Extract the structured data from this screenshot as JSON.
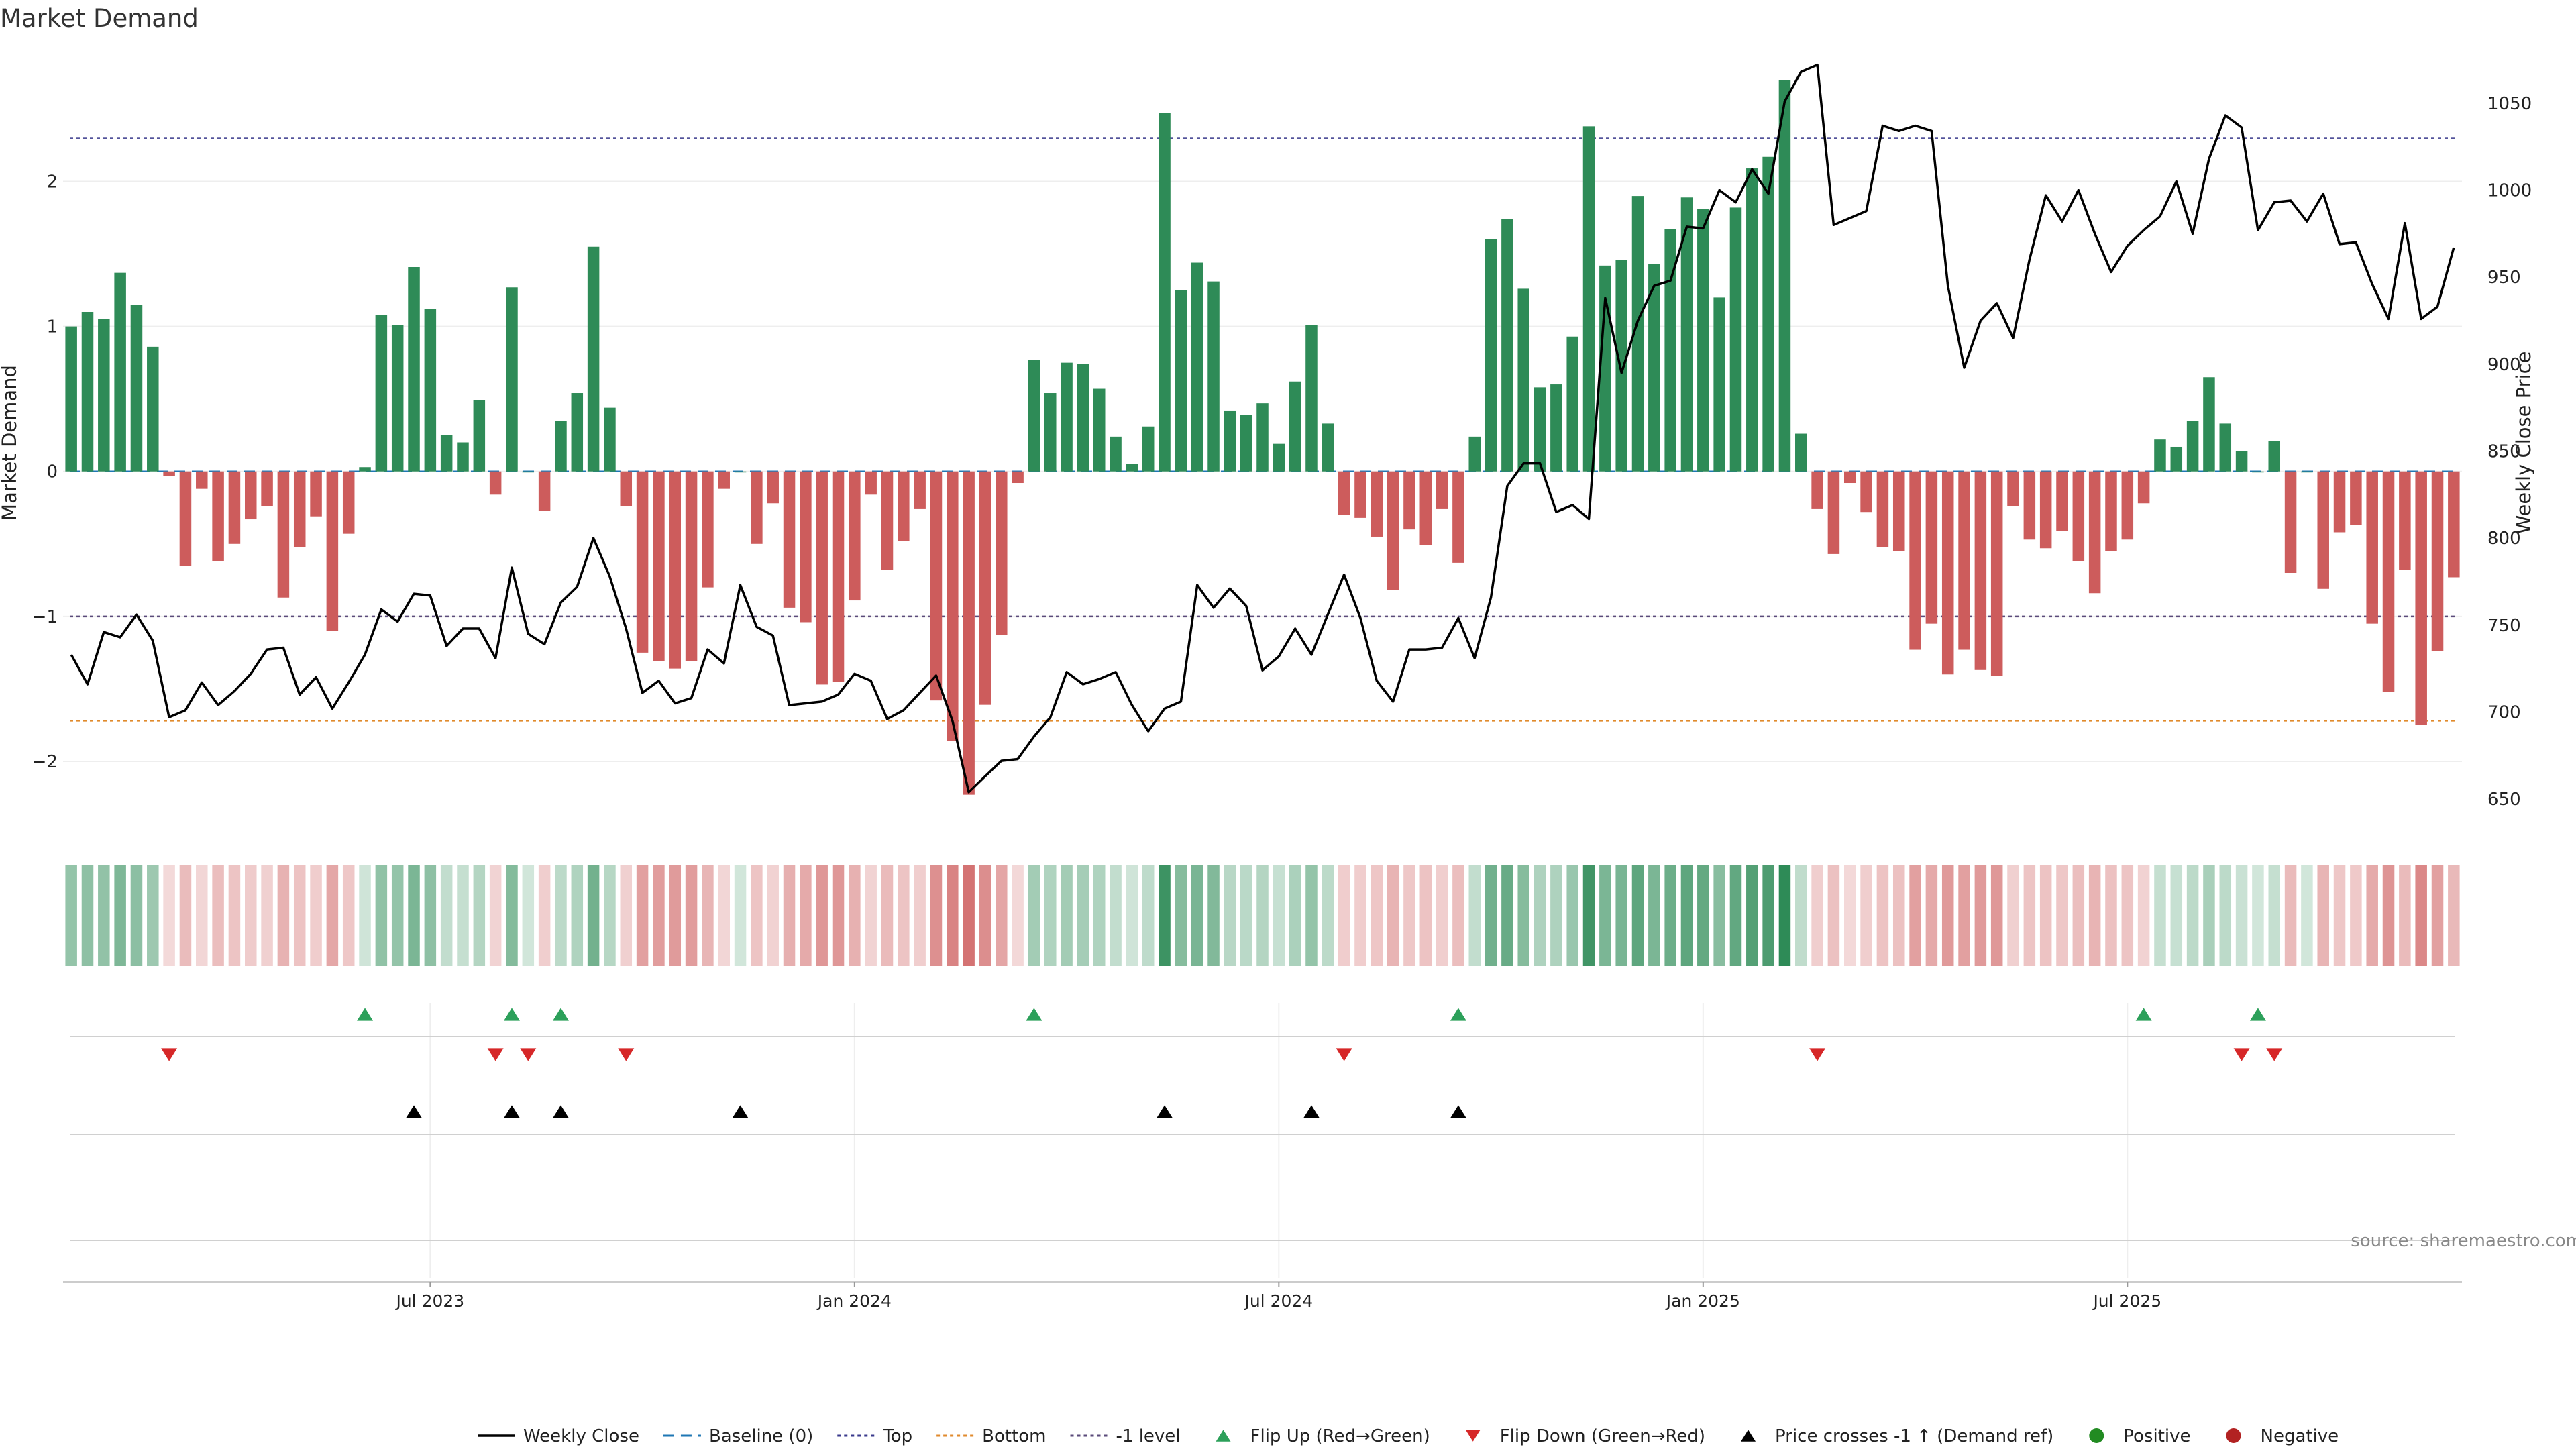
{
  "chart_data": {
    "type": "bar",
    "title": "Market Demand",
    "ylabel": "Market Demand",
    "y2label": "Weekly Close Price",
    "source": "source: sharemaestro.com",
    "ylim": [
      -2.5,
      2.9
    ],
    "y_ticks": [
      {
        "v": 2,
        "t": "2"
      },
      {
        "v": 1,
        "t": "1"
      },
      {
        "v": 0,
        "t": "0"
      },
      {
        "v": -1,
        "t": "−1"
      },
      {
        "v": -2,
        "t": "−2"
      }
    ],
    "y2lim": [
      630,
      1080
    ],
    "y2_ticks": [
      {
        "v": 1050,
        "t": "1050"
      },
      {
        "v": 1000,
        "t": "1000"
      },
      {
        "v": 950,
        "t": "950"
      },
      {
        "v": 900,
        "t": "900"
      },
      {
        "v": 850,
        "t": "850"
      },
      {
        "v": 800,
        "t": "800"
      },
      {
        "v": 750,
        "t": "750"
      },
      {
        "v": 700,
        "t": "700"
      },
      {
        "v": 650,
        "t": "650"
      }
    ],
    "x_ticks": [
      {
        "i": 22,
        "t": "Jul 2023"
      },
      {
        "i": 48,
        "t": "Jan 2024"
      },
      {
        "i": 74,
        "t": "Jul 2024"
      },
      {
        "i": 100,
        "t": "Jan 2025"
      },
      {
        "i": 126,
        "t": "Jul 2025"
      }
    ],
    "reference_lines": [
      {
        "name": "Baseline (0)",
        "value": 0,
        "color": "#1f77b4",
        "dash": "16,10"
      },
      {
        "name": "Top",
        "value": 2.3,
        "color": "#3a3a8c",
        "dash": "5,5"
      },
      {
        "name": "Bottom",
        "value": -1.72,
        "color": "#e08a2c",
        "dash": "5,5"
      },
      {
        "name": "-1 level",
        "value": -1,
        "color": "#5a4a7a",
        "dash": "5,5"
      }
    ],
    "colors": {
      "positive": "#2e8b57",
      "negative": "#cd5c5c",
      "price": "#000000",
      "flip_up": "#2ca05a",
      "flip_down": "#d62728",
      "cross": "#000000",
      "legend_positive": "#228b22",
      "legend_negative": "#b22222"
    },
    "demand": [
      1.0,
      1.1,
      1.05,
      1.37,
      1.15,
      0.86,
      -0.03,
      -0.65,
      -0.12,
      -0.62,
      -0.5,
      -0.33,
      -0.24,
      -0.87,
      -0.52,
      -0.31,
      -1.1,
      -0.43,
      0.03,
      1.08,
      1.01,
      1.41,
      1.12,
      0.25,
      0.2,
      0.49,
      -0.16,
      1.27,
      0.0,
      -0.27,
      0.35,
      0.54,
      1.55,
      0.44,
      -0.24,
      -1.25,
      -1.31,
      -1.36,
      -1.31,
      -0.8,
      -0.12,
      0.0,
      -0.5,
      -0.22,
      -0.94,
      -1.04,
      -1.47,
      -1.45,
      -0.89,
      -0.16,
      -0.68,
      -0.48,
      -0.26,
      -1.58,
      -1.86,
      -2.23,
      -1.61,
      -1.13,
      -0.08,
      0.77,
      0.54,
      0.75,
      0.74,
      0.57,
      0.24,
      0.05,
      0.31,
      2.47,
      1.25,
      1.44,
      1.31,
      0.42,
      0.39,
      0.47,
      0.19,
      0.62,
      1.01,
      0.33,
      -0.3,
      -0.32,
      -0.45,
      -0.82,
      -0.4,
      -0.51,
      -0.26,
      -0.63,
      0.24,
      1.6,
      1.74,
      1.26,
      0.58,
      0.6,
      0.93,
      2.38,
      1.42,
      1.46,
      1.9,
      1.43,
      1.67,
      1.89,
      1.81,
      1.2,
      1.82,
      2.09,
      2.17,
      2.7,
      0.26,
      -0.26,
      -0.57,
      -0.08,
      -0.28,
      -0.52,
      -0.55,
      -1.23,
      -1.05,
      -1.4,
      -1.23,
      -1.37,
      -1.41,
      -0.24,
      -0.47,
      -0.53,
      -0.41,
      -0.62,
      -0.84,
      -0.55,
      -0.47,
      -0.22,
      0.22,
      0.17,
      0.35,
      0.65,
      0.33,
      0.14,
      0.0,
      0.21,
      -0.7,
      0.0,
      -0.81,
      -0.42,
      -0.37,
      -1.05,
      -1.52,
      -0.68,
      -1.75,
      -1.24,
      -0.73
    ],
    "price": [
      733,
      716,
      746,
      743,
      756,
      741,
      697,
      701,
      717,
      704,
      712,
      722,
      736,
      737,
      710,
      720,
      702,
      717,
      733,
      759,
      752,
      768,
      767,
      738,
      748,
      748,
      731,
      783,
      745,
      739,
      763,
      772,
      800,
      778,
      748,
      711,
      718,
      705,
      708,
      736,
      728,
      773,
      749,
      744,
      704,
      705,
      706,
      710,
      722,
      718,
      696,
      701,
      711,
      721,
      695,
      654,
      663,
      672,
      673,
      686,
      697,
      723,
      716,
      719,
      723,
      704,
      689,
      702,
      706,
      773,
      760,
      771,
      761,
      724,
      732,
      748,
      733,
      756,
      779,
      754,
      718,
      706,
      736,
      736,
      737,
      754,
      731,
      766,
      830,
      843,
      843,
      815,
      819,
      811,
      938,
      895,
      925,
      945,
      948,
      979,
      978,
      1000,
      993,
      1012,
      998,
      1051,
      1068,
      1072,
      980,
      984,
      988,
      1037,
      1034,
      1037,
      1034,
      945,
      898,
      925,
      935,
      915,
      960,
      997,
      982,
      1000,
      975,
      953,
      968,
      977,
      985,
      1005,
      975,
      1018,
      1043,
      1036,
      977,
      993,
      994,
      982,
      998,
      969,
      970,
      946,
      926,
      981,
      926,
      933,
      967
    ],
    "flip_up": [
      18,
      27,
      30,
      59,
      85,
      127,
      134
    ],
    "flip_down": [
      6,
      26,
      28,
      34,
      78,
      107,
      133,
      135
    ],
    "price_cross": [
      21,
      27,
      30,
      41,
      67,
      76,
      85
    ],
    "legend": [
      {
        "key": "price",
        "label": "Weekly Close"
      },
      {
        "key": "baseline",
        "label": "Baseline (0)"
      },
      {
        "key": "top",
        "label": "Top"
      },
      {
        "key": "bottom",
        "label": "Bottom"
      },
      {
        "key": "minus1",
        "label": "-1 level"
      },
      {
        "key": "flip_up",
        "label": "Flip Up (Red→Green)"
      },
      {
        "key": "flip_down",
        "label": "Flip Down (Green→Red)"
      },
      {
        "key": "cross",
        "label": "Price crosses -1 ↑ (Demand ref)"
      },
      {
        "key": "positive",
        "label": "Positive"
      },
      {
        "key": "negative",
        "label": "Negative"
      }
    ]
  }
}
